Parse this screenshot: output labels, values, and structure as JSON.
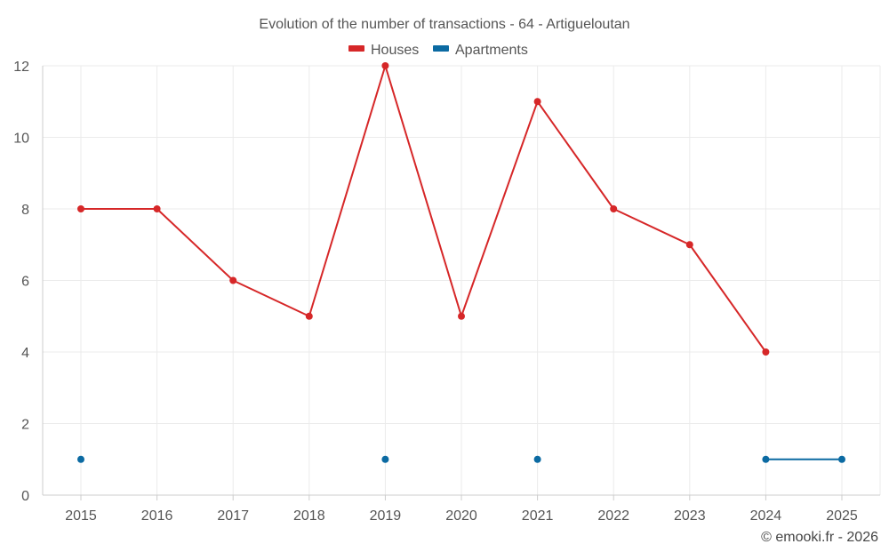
{
  "chart_data": {
    "type": "line",
    "title": "Evolution of the number of transactions - 64 - Artigueloutan",
    "categories": [
      "2015",
      "2016",
      "2017",
      "2018",
      "2019",
      "2020",
      "2021",
      "2022",
      "2023",
      "2024",
      "2025"
    ],
    "series": [
      {
        "name": "Houses",
        "color": "#d62728",
        "values": [
          8,
          8,
          6,
          5,
          12,
          5,
          11,
          8,
          7,
          4,
          null
        ]
      },
      {
        "name": "Apartments",
        "color": "#0b6aa2",
        "values": [
          1,
          null,
          null,
          null,
          1,
          null,
          1,
          null,
          null,
          1,
          1
        ]
      }
    ],
    "xlabel": "",
    "ylabel": "",
    "ylim": [
      0,
      12
    ],
    "yticks": [
      0,
      2,
      4,
      6,
      8,
      10,
      12
    ],
    "grid": true,
    "legend": "top-center"
  },
  "credit": "© emooki.fr - 2026"
}
